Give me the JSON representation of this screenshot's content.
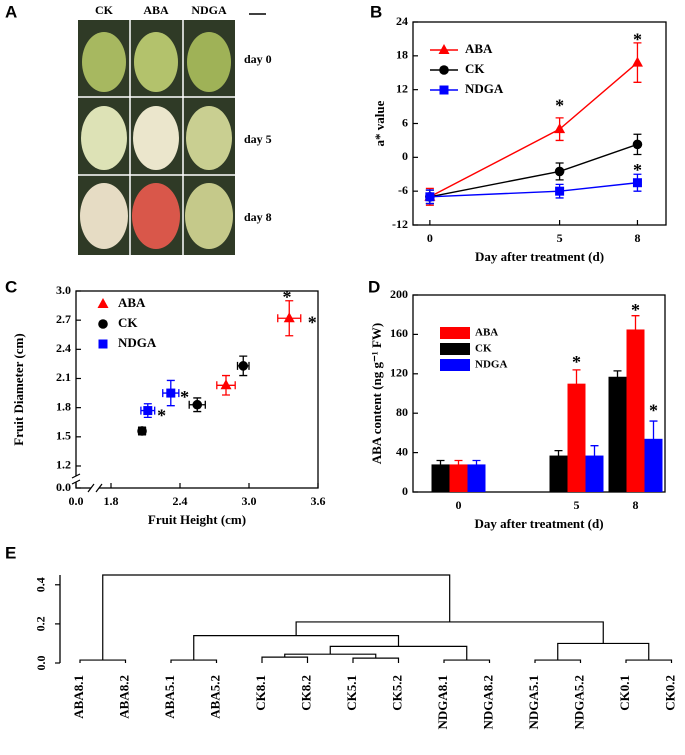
{
  "panel_a": {
    "panel": "A",
    "columns": [
      "CK",
      "ABA",
      "NDGA"
    ],
    "rows": [
      "day 0",
      "day 5",
      "day 8"
    ]
  },
  "chart_data": [
    {
      "panel": "B",
      "type": "line",
      "x": [
        0,
        5,
        8
      ],
      "xlim": [
        -0.65,
        9.1
      ],
      "xticks": [
        0,
        5,
        8
      ],
      "ylim": [
        -12,
        24
      ],
      "yticks": [
        -12,
        -6,
        0,
        6,
        12,
        18,
        24
      ],
      "xlabel": "Day after treatment (d)",
      "ylabel": "a* value",
      "legend": "upper left",
      "series": [
        {
          "name": "ABA",
          "color": "#ff0000",
          "marker": "triangle",
          "values": [
            -7,
            5,
            16.8
          ],
          "errors": [
            1.5,
            2,
            3.5
          ]
        },
        {
          "name": "CK",
          "color": "#000000",
          "marker": "circle",
          "values": [
            -7,
            -2.5,
            2.3
          ],
          "errors": [
            1.2,
            1.5,
            1.8
          ]
        },
        {
          "name": "NDGA",
          "color": "#0000ff",
          "marker": "square",
          "values": [
            -7,
            -6,
            -4.5
          ],
          "errors": [
            1.2,
            1.2,
            1.5
          ]
        }
      ],
      "annotations": [
        {
          "x": 5,
          "y": 9.6,
          "text": "*"
        },
        {
          "x": 8,
          "y": 21.3,
          "text": "*"
        },
        {
          "x": 8,
          "y": -1.9,
          "text": "*"
        }
      ]
    },
    {
      "panel": "C",
      "type": "scatter",
      "xlim": [
        0,
        3.6
      ],
      "xbreak": [
        0.15,
        1.7
      ],
      "xticks": [
        {
          "value": 0,
          "label": "0.0"
        },
        1.8,
        2.4,
        {
          "value": 3,
          "label": "3.0"
        },
        3.6
      ],
      "ylim": [
        0,
        3
      ],
      "ybreak": [
        0.05,
        1.1
      ],
      "yticks": [
        {
          "value": 0,
          "label": "0.0"
        },
        1.2,
        1.5,
        1.8,
        2.1,
        2.4,
        2.7,
        {
          "value": 3,
          "label": "3.0"
        }
      ],
      "xlabel": "Fruit Height (cm)",
      "ylabel": "Fruit Diameter (cm)",
      "legend": "upper left",
      "series": [
        {
          "name": "ABA",
          "color": "#ff0000",
          "marker": "triangle",
          "x": [
            2.8,
            3.35
          ],
          "values": [
            2.03,
            2.72
          ],
          "xerr": [
            0.08,
            0.1
          ],
          "yerr": [
            0.1,
            0.18
          ]
        },
        {
          "name": "CK",
          "color": "#000000",
          "marker": "circle",
          "x": [
            2.07,
            2.55,
            2.95
          ],
          "values": [
            1.56,
            1.83,
            2.23
          ],
          "xerr": [
            0.03,
            0.07,
            0.05
          ],
          "yerr": [
            0.04,
            0.07,
            0.1
          ]
        },
        {
          "name": "NDGA",
          "color": "#0000ff",
          "marker": "square",
          "x": [
            2.12,
            2.32
          ],
          "values": [
            1.77,
            1.95
          ],
          "xerr": [
            0.06,
            0.07
          ],
          "yerr": [
            0.07,
            0.13
          ]
        }
      ],
      "annotations": [
        {
          "x": 2.24,
          "y": 1.74,
          "text": "*"
        },
        {
          "x": 2.44,
          "y": 1.93,
          "text": "*"
        },
        {
          "x": 3.33,
          "y": 2.96,
          "text": "*"
        },
        {
          "x": 3.55,
          "y": 2.7,
          "text": "*"
        }
      ]
    },
    {
      "panel": "D",
      "type": "bar",
      "categories": [
        "0",
        null,
        "5",
        "8"
      ],
      "ylim": [
        0,
        200
      ],
      "yticks": [
        0,
        40,
        80,
        120,
        160,
        200
      ],
      "xlabel": "Day after treatment (d)",
      "ylabel": "ABA content (ng g⁻¹ FW)",
      "legend": "upper left",
      "legend_order": [
        1,
        0,
        2
      ],
      "series": [
        {
          "name": "CK",
          "color": "#000000",
          "values": [
            28,
            null,
            37,
            117
          ],
          "errors": [
            4,
            null,
            5,
            6
          ]
        },
        {
          "name": "ABA",
          "color": "#ff0000",
          "values": [
            28,
            null,
            110,
            165
          ],
          "errors": [
            4,
            null,
            14,
            14
          ]
        },
        {
          "name": "NDGA",
          "color": "#0000ff",
          "values": [
            28,
            null,
            37,
            54
          ],
          "errors": [
            4,
            null,
            10,
            18
          ]
        }
      ],
      "annotations": [
        {
          "category": 2,
          "series": 1,
          "y": 134,
          "text": "*"
        },
        {
          "category": 3,
          "series": 1,
          "y": 187,
          "text": "*"
        },
        {
          "category": 3,
          "series": 2,
          "y": 85,
          "text": "*"
        }
      ]
    },
    {
      "panel": "E",
      "type": "dendrogram",
      "ylim": [
        0,
        0.45
      ],
      "yticks": [
        {
          "value": 0,
          "label": "0.0"
        },
        0.2,
        0.4
      ],
      "leaves": [
        "ABA8.1",
        "ABA8.2",
        "ABA5.1",
        "ABA5.2",
        "CK8.1",
        "CK8.2",
        "CK5.1",
        "CK5.2",
        "NDGA8.1",
        "NDGA8.2",
        "NDGA5.1",
        "NDGA5.2",
        "CK0.1",
        "CK0.2"
      ],
      "merges": [
        [
          0,
          1,
          0.015
        ],
        [
          2,
          3,
          0.015
        ],
        [
          4,
          5,
          0.03
        ],
        [
          6,
          7,
          0.025
        ],
        [
          16,
          17,
          0.045
        ],
        [
          8,
          9,
          0.015
        ],
        [
          18,
          19,
          0.085
        ],
        [
          15,
          20,
          0.14
        ],
        [
          10,
          11,
          0.015
        ],
        [
          12,
          13,
          0.015
        ],
        [
          22,
          23,
          0.1
        ],
        [
          21,
          24,
          0.21
        ],
        [
          14,
          25,
          0.45
        ]
      ]
    }
  ]
}
